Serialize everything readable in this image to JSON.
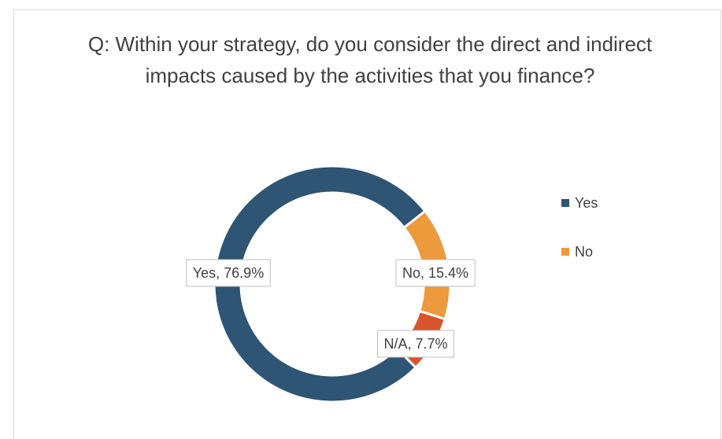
{
  "chart_data": {
    "type": "donut",
    "title": "Q: Within your strategy, do you consider the direct and indirect impacts caused by the activities that you finance?",
    "categories": [
      "Yes",
      "No",
      "N/A"
    ],
    "values": [
      76.9,
      15.4,
      7.7
    ],
    "value_labels": [
      "Yes, 76.9%",
      "No, 15.4%",
      "N/A, 7.7%"
    ],
    "colors": [
      "#2e5573",
      "#ed9a3c",
      "#d9532b"
    ],
    "legend": [
      "Yes",
      "No"
    ],
    "legend_position": "right"
  }
}
